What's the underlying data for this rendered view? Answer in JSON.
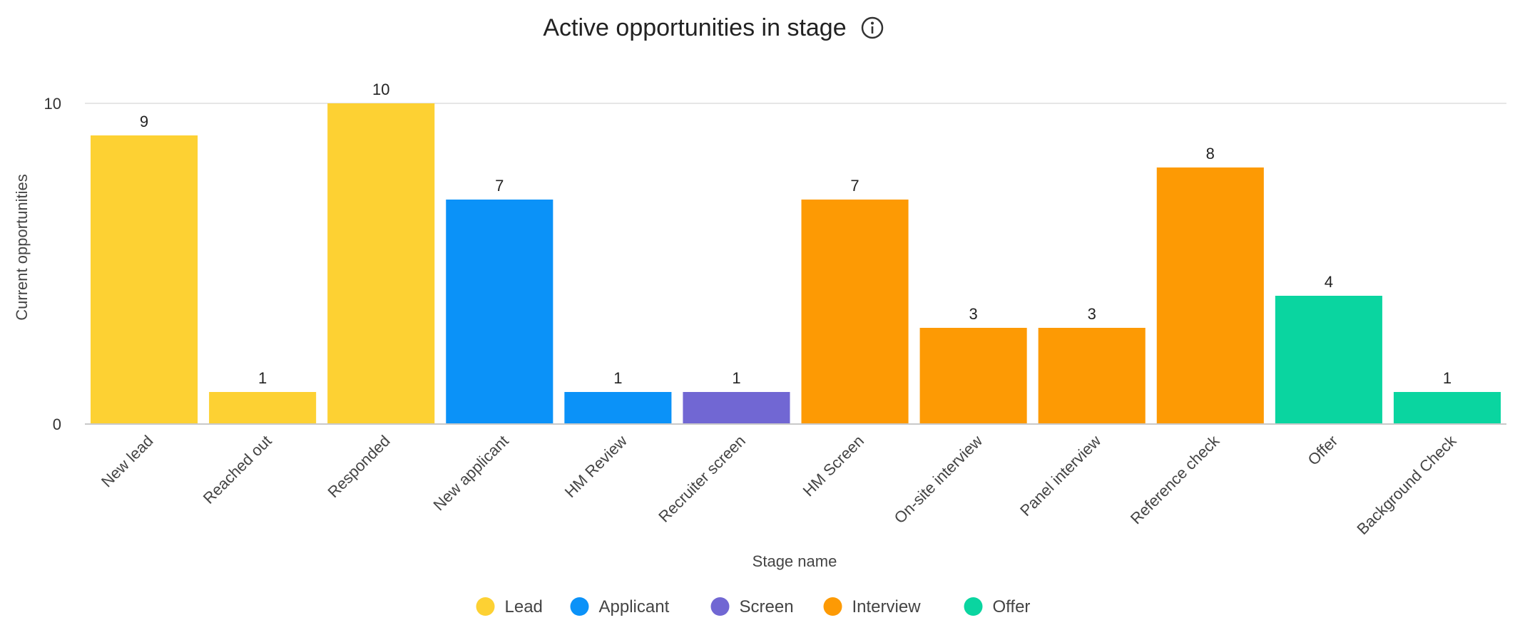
{
  "chart_data": {
    "type": "bar",
    "title": "Active opportunities in stage",
    "xlabel": "Stage name",
    "ylabel": "Current opportunities",
    "ylim": [
      0,
      10
    ],
    "yticks": [
      0,
      10
    ],
    "grid": true,
    "legend_position": "bottom",
    "categories": [
      "New lead",
      "Reached out",
      "Responded",
      "New applicant",
      "HM Review",
      "Recruiter screen",
      "HM Screen",
      "On-site interview",
      "Panel interview",
      "Reference check",
      "Offer",
      "Background Check"
    ],
    "values": [
      9,
      1,
      10,
      7,
      1,
      1,
      7,
      3,
      3,
      8,
      4,
      1
    ],
    "groups": [
      "Lead",
      "Lead",
      "Lead",
      "Applicant",
      "Applicant",
      "Screen",
      "Interview",
      "Interview",
      "Interview",
      "Interview",
      "Offer",
      "Offer"
    ],
    "legend": [
      {
        "name": "Lead",
        "color": "#FDD133"
      },
      {
        "name": "Applicant",
        "color": "#0B92F8"
      },
      {
        "name": "Screen",
        "color": "#7167D3"
      },
      {
        "name": "Interview",
        "color": "#FD9A04"
      },
      {
        "name": "Offer",
        "color": "#0AD5A0"
      }
    ]
  }
}
